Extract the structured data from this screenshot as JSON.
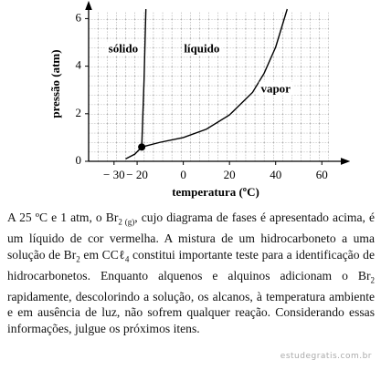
{
  "chart_data": {
    "type": "line",
    "ylabel": "pressão (atm)",
    "xlabel": "temperatura (ºC)",
    "xlim": [
      -41,
      69
    ],
    "ylim": [
      0,
      6.4
    ],
    "xticks": [
      {
        "value": -30,
        "label": "− 30"
      },
      {
        "value": -20,
        "label": "− 20"
      },
      0,
      20,
      40,
      60
    ],
    "yticks": [
      0,
      2,
      4,
      6
    ],
    "grid": true,
    "series": [
      {
        "x": [
          -25,
          -21,
          -18
        ],
        "values": [
          0.1,
          0.3,
          0.6
        ],
        "color": "#000"
      },
      {
        "x": [
          -18,
          -17,
          -16.2
        ],
        "values": [
          0.6,
          3.4,
          6.4
        ],
        "color": "#000"
      },
      {
        "x": [
          -18,
          -10,
          0,
          10,
          20,
          30,
          35,
          40,
          45
        ],
        "values": [
          0.6,
          0.8,
          1.0,
          1.35,
          1.95,
          2.9,
          3.7,
          4.8,
          6.4
        ],
        "color": "#000"
      }
    ],
    "triple_point": {
      "x": -18,
      "y": 0.6
    },
    "annotations": [
      {
        "text": "sólido",
        "x": -26,
        "y": 4.7
      },
      {
        "text": "líquido",
        "x": 8,
        "y": 4.7
      },
      {
        "text": "vapor",
        "x": 40,
        "y": 3.0
      }
    ]
  },
  "paragraph": [
    "A 25 ºC e 1 atm, o Br",
    "2 (g)",
    ", cujo diagrama de fases é apresentado acima, é um líquido de cor vermelha. A mistura de um hidrocarboneto a uma solução de Br",
    "2",
    " em CCℓ",
    "4",
    " constitui importante teste para a identificação de hidrocarbonetos. Enquanto alquenos e alquinos adicionam o Br",
    "2",
    " rapidamente, descolorindo a solução, os alcanos, à temperatura ambiente e em ausência de luz, não sofrem qualquer reação. Considerando essas informações, julgue os próximos itens."
  ],
  "watermark": "estudegratis.com.br"
}
